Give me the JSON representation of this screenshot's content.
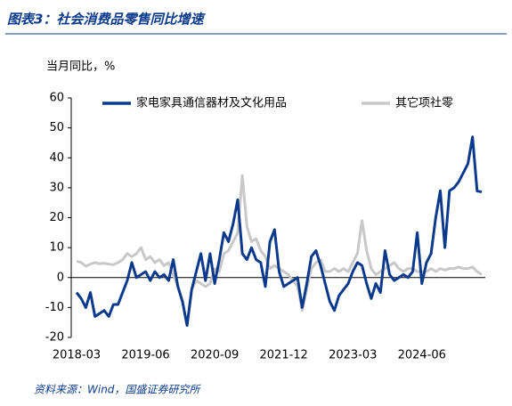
{
  "chart_data": {
    "type": "line",
    "title": "图表3：社会消费品零售同比增速",
    "y_label": "当月同比，%",
    "source": "资料来源：Wind，国盛证券研究所",
    "categories": [
      "2018-03",
      null,
      null,
      null,
      null,
      null,
      null,
      null,
      null,
      null,
      null,
      null,
      null,
      null,
      null,
      "2019-06",
      null,
      null,
      null,
      null,
      null,
      null,
      null,
      null,
      null,
      null,
      null,
      null,
      null,
      null,
      "2020-09",
      null,
      null,
      null,
      null,
      null,
      null,
      null,
      null,
      null,
      null,
      null,
      null,
      null,
      null,
      "2021-12",
      null,
      null,
      null,
      null,
      null,
      null,
      null,
      null,
      null,
      null,
      null,
      null,
      null,
      null,
      "2023-03",
      null,
      null,
      null,
      null,
      null,
      null,
      null,
      null,
      null,
      null,
      null,
      null,
      null,
      null,
      "2024-06",
      null,
      null,
      null,
      null,
      null,
      null,
      null,
      null,
      null,
      null,
      null,
      null,
      null
    ],
    "series": [
      {
        "name": "家电家具通信器材及文化用品",
        "color": "#0b3a8c",
        "values": [
          -5,
          -7,
          -10,
          -5,
          -13,
          -12,
          -11,
          -13,
          -9,
          -9,
          -5,
          -1,
          5,
          0,
          1,
          2,
          -1,
          2,
          0,
          1,
          -1,
          6,
          -3,
          -8,
          -16,
          -4,
          2,
          8,
          -1,
          8,
          -2,
          6,
          15,
          12,
          18,
          26,
          8,
          6,
          10,
          6,
          5,
          -3,
          12,
          16,
          2,
          -3,
          -2,
          -1,
          0,
          -10,
          -2,
          7,
          9,
          4,
          -2,
          -8,
          -11,
          -6,
          -4,
          -2,
          2,
          5,
          4,
          -2,
          -7,
          -2,
          -5,
          9,
          1,
          -1,
          0,
          1,
          0,
          2,
          15,
          -2,
          5,
          8,
          20,
          29,
          10,
          29,
          30,
          32,
          35,
          38,
          47,
          28.9,
          28.6
        ]
      },
      {
        "name": "其它项社零",
        "color": "#c8c8c8",
        "values": [
          5.5,
          5,
          3.8,
          4.5,
          5,
          4.6,
          4.8,
          4.5,
          4.3,
          5,
          6,
          8,
          7,
          8,
          10,
          6,
          7,
          5,
          6,
          4,
          5,
          1,
          -3,
          -8,
          -16,
          -4,
          -1,
          -2,
          -3,
          -2,
          3,
          2,
          8,
          9,
          12,
          15,
          34,
          17,
          12,
          13,
          9,
          7,
          3,
          4,
          3,
          2,
          1,
          -1,
          -3,
          -11,
          -4,
          3,
          5,
          6,
          2,
          2,
          3,
          2,
          3,
          2,
          5,
          8,
          19,
          9,
          3,
          1,
          2,
          3,
          4,
          5,
          3,
          2,
          3,
          3,
          2,
          2,
          2,
          3,
          2,
          3,
          2.5,
          3,
          3,
          3.5,
          3,
          3,
          3.5,
          2,
          1
        ]
      }
    ],
    "ylim": [
      -20,
      60
    ],
    "yticks": [
      -20,
      -10,
      0,
      10,
      20,
      30,
      40,
      50,
      60
    ],
    "grid": false
  }
}
